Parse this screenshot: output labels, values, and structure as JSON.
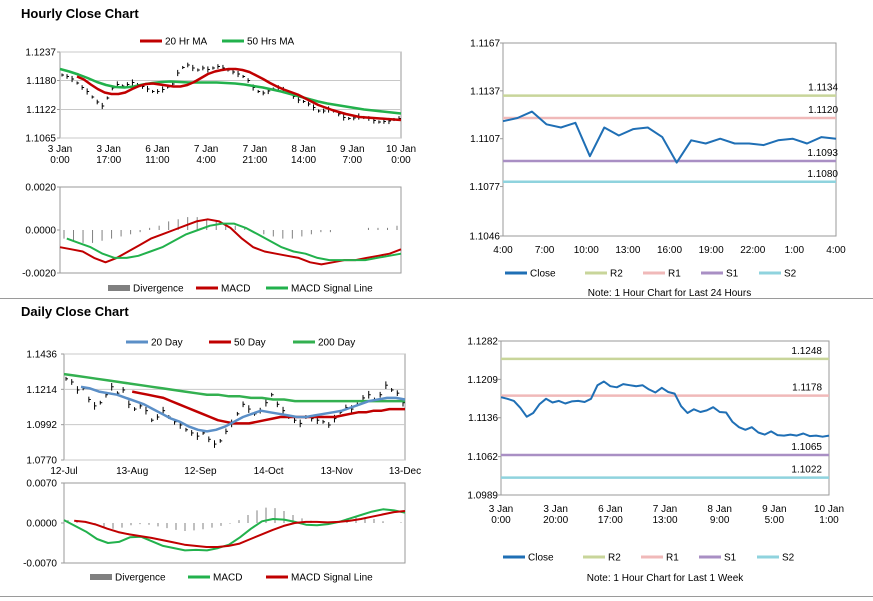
{
  "sections": {
    "hourly_title": "Hourly Close Chart",
    "daily_title": "Daily Close Chart"
  },
  "colors": {
    "ma_short": "#c00000",
    "ma_long": "#22b14c",
    "ma_200": "#33b050",
    "ma_blue": "#5b8fc7",
    "close": "#1f6fb5",
    "r2": "#c8d59a",
    "r1": "#f0b9b9",
    "s1": "#a98fc4",
    "s2": "#8fd3de",
    "divergence": "#808080"
  },
  "chart_data": [
    {
      "id": "hourly_price",
      "type": "line",
      "title": "",
      "legend": [
        "20 Hr MA",
        "50 Hrs MA"
      ],
      "x_ticks": [
        "3 Jan\n0:00",
        "3 Jan\n17:00",
        "6 Jan\n11:00",
        "7 Jan\n4:00",
        "7 Jan\n21:00",
        "8 Jan\n14:00",
        "9 Jan\n7:00",
        "10 Jan\n0:00"
      ],
      "y_ticks": [
        1.1065,
        1.1122,
        1.118,
        1.1237
      ],
      "ylim": [
        1.1065,
        1.1237
      ],
      "close": [
        1.1191,
        1.1188,
        1.1183,
        1.1175,
        1.1166,
        1.1158,
        1.1147,
        1.1137,
        1.1129,
        1.1145,
        1.1165,
        1.1172,
        1.1169,
        1.1172,
        1.1176,
        1.1172,
        1.1168,
        1.1163,
        1.1158,
        1.1158,
        1.1162,
        1.1167,
        1.1173,
        1.1195,
        1.1206,
        1.1211,
        1.1205,
        1.1201,
        1.1205,
        1.1202,
        1.1205,
        1.1208,
        1.1205,
        1.1201,
        1.1197,
        1.1193,
        1.1188,
        1.118,
        1.1166,
        1.1158,
        1.1155,
        1.1159,
        1.1163,
        1.1166,
        1.1161,
        1.1156,
        1.1148,
        1.1141,
        1.1138,
        1.1133,
        1.1126,
        1.1119,
        1.1119,
        1.1122,
        1.1119,
        1.1113,
        1.1106,
        1.1104,
        1.1105,
        1.1108,
        1.1106,
        1.1104,
        1.11,
        1.1097,
        1.1098,
        1.1099,
        1.1102,
        1.1104
      ],
      "ma20": [
        1.1188,
        1.1182,
        1.1172,
        1.1163,
        1.1156,
        1.1153,
        1.1153,
        1.1156,
        1.1163,
        1.1169,
        1.1173,
        1.1174,
        1.1172,
        1.117,
        1.1168,
        1.1168,
        1.1171,
        1.1177,
        1.1185,
        1.1193,
        1.1198,
        1.1201,
        1.1203,
        1.1203,
        1.1201,
        1.1197,
        1.119,
        1.1183,
        1.1175,
        1.1168,
        1.1162,
        1.1157,
        1.1152,
        1.1145,
        1.1138,
        1.1131,
        1.1126,
        1.1121,
        1.1117,
        1.1113,
        1.111,
        1.1107,
        1.1106,
        1.1105,
        1.1104,
        1.1103,
        1.1102,
        1.1101
      ],
      "ma50": [
        1.1203,
        1.1198,
        1.1192,
        1.1185,
        1.1177,
        1.1171,
        1.1167,
        1.1166,
        1.1168,
        1.1172,
        1.1175,
        1.1177,
        1.1178,
        1.1177,
        1.1176,
        1.1176,
        1.1176,
        1.1176,
        1.1175,
        1.1174,
        1.1172,
        1.1169,
        1.1166,
        1.1162,
        1.1158,
        1.1153,
        1.1148,
        1.1143,
        1.1138,
        1.1134,
        1.1131,
        1.1128,
        1.1125,
        1.1122,
        1.112,
        1.1118,
        1.1116,
        1.1114
      ],
      "grid": true,
      "legend_position": "top"
    },
    {
      "id": "hourly_macd",
      "type": "line",
      "title": "",
      "legend": [
        "Divergence",
        "MACD",
        "MACD Signal Line"
      ],
      "y_ticks": [
        "0.0020",
        "0.0000",
        "-0.0020"
      ],
      "ylim": [
        -0.002,
        0.002
      ],
      "divergence": [
        -0.0004,
        -0.0005,
        -0.0006,
        -0.0006,
        -0.0005,
        -0.0004,
        -0.0003,
        -0.0002,
        -0.0001,
        0.0001,
        0.0002,
        0.0004,
        0.0005,
        0.0006,
        0.0006,
        0.0005,
        0.0004,
        0.0003,
        0.0002,
        0.0001,
        0.0,
        -0.0002,
        -0.0003,
        -0.0004,
        -0.0004,
        -0.0003,
        -0.0002,
        -0.0001,
        -0.0001,
        0.0,
        0.0,
        0.0,
        0.0001,
        0.0001,
        0.0001,
        0.0002
      ],
      "macd": [
        -0.0008,
        -0.0009,
        -0.001,
        -0.0013,
        -0.0015,
        -0.0013,
        -0.001,
        -0.0007,
        -0.0004,
        -0.0002,
        0.0,
        0.0002,
        0.0004,
        0.0005,
        0.0004,
        0.0001,
        -0.0004,
        -0.0008,
        -0.001,
        -0.0011,
        -0.0012,
        -0.0013,
        -0.0015,
        -0.0016,
        -0.0015,
        -0.0014,
        -0.0014,
        -0.0013,
        -0.0012,
        -0.0011,
        -0.0009
      ],
      "signal": [
        -0.0004,
        -0.0006,
        -0.0008,
        -0.0011,
        -0.0013,
        -0.0013,
        -0.0012,
        -0.001,
        -0.0008,
        -0.0005,
        -0.0002,
        0.0,
        0.0002,
        0.0003,
        0.0003,
        0.0001,
        -0.0002,
        -0.0005,
        -0.0008,
        -0.001,
        -0.0011,
        -0.0013,
        -0.0014,
        -0.0014,
        -0.0014,
        -0.0014,
        -0.0013,
        -0.0012,
        -0.0011
      ],
      "legend_position": "bottom"
    },
    {
      "id": "hourly_24h",
      "type": "line",
      "title": "",
      "x_ticks": [
        "4:00",
        "7:00",
        "10:00",
        "13:00",
        "16:00",
        "19:00",
        "22:00",
        "1:00",
        "4:00"
      ],
      "y_ticks": [
        1.1046,
        1.1077,
        1.1107,
        1.1137,
        1.1167
      ],
      "ylim": [
        1.1046,
        1.1167
      ],
      "close": [
        1.1118,
        1.112,
        1.1124,
        1.1116,
        1.1114,
        1.1117,
        1.1096,
        1.1114,
        1.1109,
        1.1113,
        1.1114,
        1.1108,
        1.1092,
        1.1106,
        1.1104,
        1.1107,
        1.1104,
        1.1104,
        1.1103,
        1.1106,
        1.1107,
        1.1104,
        1.1108,
        1.1107
      ],
      "levels": {
        "R2": 1.1134,
        "R1": 1.112,
        "S1": 1.1093,
        "S2": 1.108
      },
      "level_labels": [
        "1.1134",
        "1.1120",
        "1.1093",
        "1.1080"
      ],
      "legend": [
        "Close",
        "R2",
        "R1",
        "S1",
        "S2"
      ],
      "note": "Note: 1 Hour Chart for Last 24 Hours",
      "legend_position": "bottom"
    },
    {
      "id": "daily_price",
      "type": "line",
      "title": "",
      "legend": [
        "20 Day",
        "50 Day",
        "200 Day"
      ],
      "x_ticks": [
        "12-Jul",
        "13-Aug",
        "12-Sep",
        "14-Oct",
        "13-Nov",
        "13-Dec"
      ],
      "y_ticks": [
        1.077,
        1.0992,
        1.1214,
        1.1436
      ],
      "ylim": [
        1.077,
        1.1436
      ],
      "close": [
        1.128,
        1.126,
        1.121,
        1.122,
        1.115,
        1.111,
        1.113,
        1.118,
        1.123,
        1.119,
        1.121,
        1.112,
        1.109,
        1.111,
        1.108,
        1.102,
        1.104,
        1.108,
        1.104,
        1.101,
        1.099,
        1.096,
        1.094,
        1.092,
        1.094,
        1.09,
        1.087,
        1.089,
        1.095,
        1.1,
        1.106,
        1.112,
        1.109,
        1.106,
        1.108,
        1.113,
        1.118,
        1.112,
        1.108,
        1.104,
        1.102,
        1.1,
        1.104,
        1.103,
        1.102,
        1.101,
        1.099,
        1.103,
        1.107,
        1.11,
        1.109,
        1.112,
        1.116,
        1.118,
        1.115,
        1.118,
        1.124,
        1.121,
        1.119,
        1.113
      ],
      "ma20": [
        1.123,
        1.122,
        1.12,
        1.119,
        1.118,
        1.116,
        1.114,
        1.112,
        1.109,
        1.106,
        1.103,
        1.101,
        1.098,
        1.096,
        1.095,
        1.096,
        1.098,
        1.101,
        1.104,
        1.106,
        1.108,
        1.107,
        1.106,
        1.105,
        1.104,
        1.104,
        1.105,
        1.106,
        1.107,
        1.108,
        1.11,
        1.112,
        1.114,
        1.115,
        1.116,
        1.116,
        1.115
      ],
      "ma50": [
        1.12,
        1.119,
        1.118,
        1.117,
        1.116,
        1.114,
        1.112,
        1.11,
        1.108,
        1.106,
        1.104,
        1.102,
        1.101,
        1.1,
        1.1,
        1.1,
        1.101,
        1.102,
        1.103,
        1.104,
        1.104,
        1.104,
        1.104,
        1.104,
        1.104,
        1.104,
        1.104,
        1.105,
        1.106,
        1.107,
        1.107,
        1.108,
        1.108,
        1.109,
        1.109,
        1.109
      ],
      "ma200": [
        1.131,
        1.13,
        1.129,
        1.128,
        1.127,
        1.126,
        1.125,
        1.124,
        1.123,
        1.122,
        1.121,
        1.12,
        1.119,
        1.118,
        1.118,
        1.117,
        1.117,
        1.116,
        1.116,
        1.115,
        1.115,
        1.114,
        1.114,
        1.114,
        1.114,
        1.114,
        1.114,
        1.114,
        1.114,
        1.114,
        1.114,
        1.114
      ],
      "grid": true,
      "legend_position": "top"
    },
    {
      "id": "daily_macd",
      "type": "line",
      "title": "",
      "legend": [
        "Divergence",
        "MACD",
        "MACD Signal Line"
      ],
      "y_ticks": [
        "0.0070",
        "0.0000",
        "-0.0070"
      ],
      "ylim": [
        -0.007,
        0.007
      ],
      "divergence": [
        0.0005,
        0.0004,
        0.0001,
        -0.0003,
        -0.0007,
        -0.001,
        -0.0008,
        -0.0004,
        -0.0002,
        -0.0003,
        -0.0006,
        -0.0009,
        -0.0012,
        -0.0014,
        -0.0013,
        -0.0011,
        -0.0008,
        -0.0005,
        -0.0001,
        0.0005,
        0.0014,
        0.0022,
        0.0027,
        0.0026,
        0.0021,
        0.0014,
        0.0008,
        0.0004,
        0.0002,
        0.0001,
        0.0004,
        0.0008,
        0.0011,
        0.001,
        0.0007,
        0.0003,
        0.0,
        0.0001
      ],
      "macd": [
        0.0005,
        -0.0005,
        -0.0015,
        -0.0028,
        -0.0035,
        -0.0033,
        -0.0025,
        -0.0024,
        -0.0032,
        -0.004,
        -0.0044,
        -0.0048,
        -0.0047,
        -0.0048,
        -0.0044,
        -0.0038,
        -0.0025,
        -0.001,
        0.0003,
        0.0007,
        0.0006,
        0.0002,
        -0.0003,
        -0.0004,
        -0.0002,
        0.0002,
        0.0008,
        0.0014,
        0.002,
        0.0024,
        0.0022,
        0.0018
      ],
      "signal": [
        0.0004,
        0.0002,
        -0.0003,
        -0.001,
        -0.0016,
        -0.002,
        -0.0023,
        -0.0026,
        -0.003,
        -0.0034,
        -0.0038,
        -0.004,
        -0.0042,
        -0.0042,
        -0.004,
        -0.0036,
        -0.0028,
        -0.002,
        -0.0012,
        -0.0005,
        0.0,
        0.0002,
        0.0002,
        0.0001,
        0.0002,
        0.0004,
        0.0007,
        0.0011,
        0.0015,
        0.0019,
        0.0021
      ],
      "legend_position": "bottom"
    },
    {
      "id": "daily_week",
      "type": "line",
      "title": "",
      "x_ticks": [
        "3 Jan\n0:00",
        "3 Jan\n20:00",
        "6 Jan\n17:00",
        "7 Jan\n13:00",
        "8 Jan\n9:00",
        "9 Jan\n5:00",
        "10 Jan\n1:00"
      ],
      "y_ticks": [
        1.0989,
        1.1062,
        1.1136,
        1.1209,
        1.1282
      ],
      "ylim": [
        1.0989,
        1.1282
      ],
      "close": [
        1.1175,
        1.1172,
        1.1168,
        1.1155,
        1.1138,
        1.1145,
        1.1162,
        1.1172,
        1.1165,
        1.1168,
        1.1163,
        1.1167,
        1.1168,
        1.1166,
        1.1172,
        1.1198,
        1.1205,
        1.1196,
        1.1194,
        1.12,
        1.1198,
        1.1196,
        1.1198,
        1.119,
        1.1184,
        1.1193,
        1.1185,
        1.1182,
        1.1158,
        1.1145,
        1.1152,
        1.1147,
        1.115,
        1.1156,
        1.1147,
        1.1146,
        1.1128,
        1.1118,
        1.1113,
        1.1118,
        1.1108,
        1.1104,
        1.111,
        1.1103,
        1.1102,
        1.1104,
        1.1102,
        1.1106,
        1.1101,
        1.1102,
        1.11,
        1.1102
      ],
      "levels": {
        "R2": 1.1248,
        "R1": 1.1178,
        "S1": 1.1065,
        "S2": 1.1022
      },
      "level_labels": [
        "1.1248",
        "1.1178",
        "1.1065",
        "1.1022"
      ],
      "legend": [
        "Close",
        "R2",
        "R1",
        "S1",
        "S2"
      ],
      "note": "Note: 1 Hour Chart for Last 1 Week",
      "legend_position": "bottom"
    }
  ]
}
